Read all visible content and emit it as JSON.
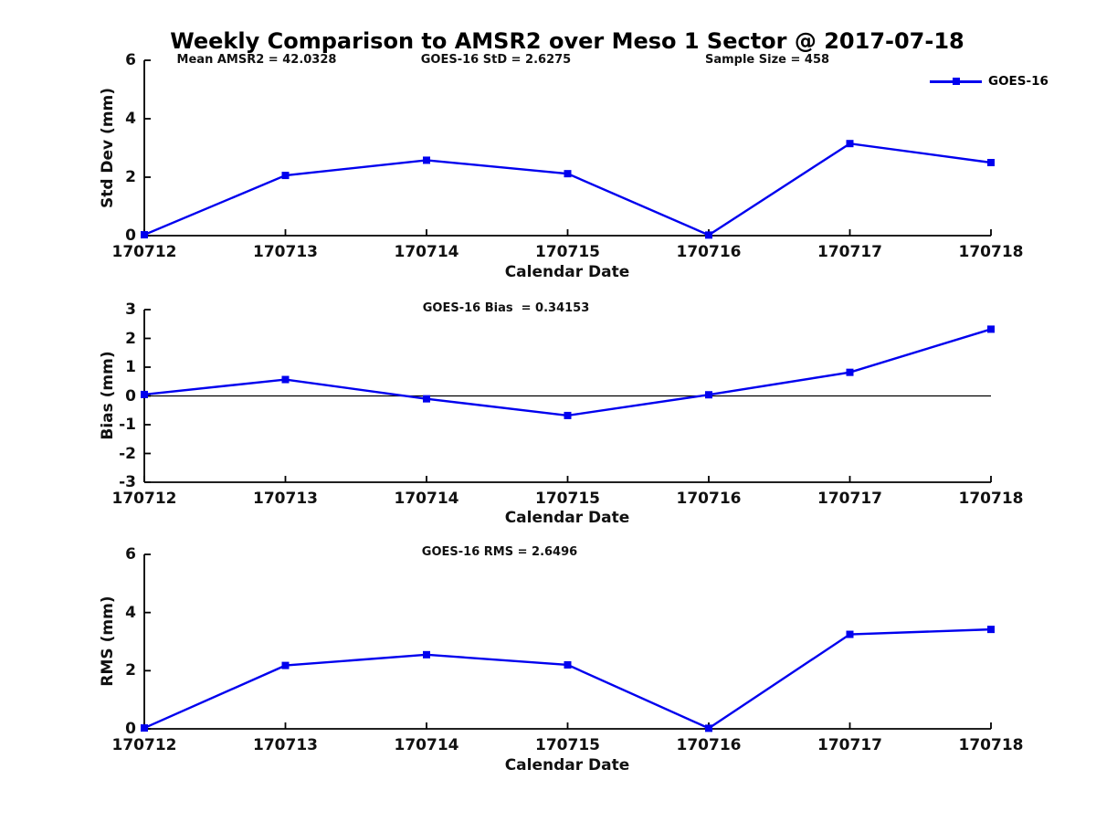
{
  "title": "Weekly Comparison to AMSR2 over Meso 1 Sector @ 2017-07-18",
  "colors": {
    "line": "#0000EE",
    "axis": "#000000",
    "background": "#FFFFFF",
    "text": "#111111"
  },
  "stats": {
    "mean_amsr2": 42.0328,
    "goes16_std": 2.6275,
    "sample_size": 458,
    "goes16_bias": 0.34153,
    "goes16_rms": 2.6496
  },
  "legend": {
    "label": "GOES-16",
    "position": "top-right",
    "marker": "filled-square"
  },
  "chart_data": [
    {
      "type": "line",
      "ylabel": "Std Dev (mm)",
      "xlabel": "Calendar Date",
      "annotations": [
        "Mean AMSR2 = 42.0328",
        "GOES-16 StD = 2.6275",
        "Sample Size = 458"
      ],
      "categories": [
        "170712",
        "170713",
        "170714",
        "170715",
        "170716",
        "170717",
        "170718"
      ],
      "ylim": [
        0,
        6
      ],
      "yticks": [
        0,
        2,
        4,
        6
      ],
      "zero_line": false,
      "grid": false,
      "series": [
        {
          "name": "GOES-16",
          "values": [
            0.03,
            2.06,
            2.58,
            2.12,
            0.02,
            3.15,
            2.5
          ]
        }
      ]
    },
    {
      "type": "line",
      "ylabel": "Bias (mm)",
      "xlabel": "Calendar Date",
      "annotations": [
        "GOES-16 Bias  = 0.34153"
      ],
      "categories": [
        "170712",
        "170713",
        "170714",
        "170715",
        "170716",
        "170717",
        "170718"
      ],
      "ylim": [
        -3,
        3
      ],
      "yticks": [
        -3,
        -2,
        -1,
        0,
        1,
        2,
        3
      ],
      "zero_line": true,
      "grid": false,
      "series": [
        {
          "name": "GOES-16",
          "values": [
            0.05,
            0.57,
            -0.1,
            -0.68,
            0.04,
            0.82,
            2.32
          ]
        }
      ]
    },
    {
      "type": "line",
      "ylabel": "RMS (mm)",
      "xlabel": "Calendar Date",
      "annotations": [
        "GOES-16 RMS = 2.6496"
      ],
      "categories": [
        "170712",
        "170713",
        "170714",
        "170715",
        "170716",
        "170717",
        "170718"
      ],
      "ylim": [
        0,
        6
      ],
      "yticks": [
        0,
        2,
        4,
        6
      ],
      "zero_line": false,
      "grid": false,
      "series": [
        {
          "name": "GOES-16",
          "values": [
            0.03,
            2.18,
            2.55,
            2.2,
            0.02,
            3.25,
            3.42
          ]
        }
      ]
    }
  ]
}
